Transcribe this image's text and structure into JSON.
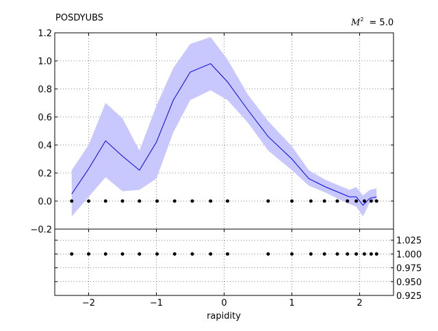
{
  "chart_data": {
    "type": "line",
    "title": "POSDYUBS",
    "annotation": {
      "symbol": "M",
      "superscript": "2",
      "text": "= 5.0"
    },
    "xlabel": "rapidity",
    "xlim": [
      -2.5,
      2.5
    ],
    "xticks": [
      -2,
      -1,
      0,
      1,
      2
    ],
    "xtick_labels": [
      "−2",
      "−1",
      "0",
      "1",
      "2"
    ],
    "top_panel": {
      "ylim": [
        -0.2,
        1.2
      ],
      "yticks": [
        -0.2,
        0.0,
        0.2,
        0.4,
        0.6,
        0.8,
        1.0,
        1.2
      ],
      "ytick_labels": [
        "−0.2",
        "0.0",
        "0.2",
        "0.4",
        "0.6",
        "0.8",
        "1.0",
        "1.2"
      ],
      "line_color": "#0000ff",
      "band_color": "#c8c8ff",
      "series": [
        {
          "x": [
            -2.25,
            -2.0,
            -1.75,
            -1.5,
            -1.25,
            -1.0,
            -0.75,
            -0.5,
            -0.2,
            0.05,
            0.35,
            0.65,
            1.0,
            1.25,
            1.5,
            1.75,
            1.85,
            1.95,
            2.05,
            2.15,
            2.25
          ],
          "y": [
            0.05,
            0.23,
            0.43,
            0.32,
            0.22,
            0.42,
            0.72,
            0.92,
            0.98,
            0.85,
            0.65,
            0.46,
            0.3,
            0.16,
            0.1,
            0.05,
            0.03,
            0.03,
            -0.03,
            0.02,
            0.03
          ],
          "y_low": [
            -0.11,
            0.03,
            0.17,
            0.07,
            0.08,
            0.16,
            0.49,
            0.72,
            0.79,
            0.72,
            0.56,
            0.36,
            0.22,
            0.11,
            0.06,
            0.0,
            -0.02,
            -0.04,
            -0.11,
            -0.01,
            0.0
          ],
          "y_high": [
            0.22,
            0.4,
            0.7,
            0.59,
            0.36,
            0.68,
            0.95,
            1.12,
            1.17,
            1.01,
            0.76,
            0.57,
            0.39,
            0.22,
            0.15,
            0.1,
            0.08,
            0.1,
            0.04,
            0.08,
            0.09
          ]
        }
      ],
      "points": {
        "x": [
          -2.25,
          -2.0,
          -1.75,
          -1.5,
          -1.25,
          -0.99,
          -0.73,
          -0.47,
          -0.2,
          0.05,
          0.65,
          1.0,
          1.28,
          1.48,
          1.67,
          1.82,
          1.95,
          2.07,
          2.17,
          2.25
        ],
        "y": [
          0,
          0,
          0,
          0,
          0,
          0,
          0,
          0,
          0,
          0,
          0,
          0,
          0,
          0,
          0,
          0,
          0,
          0,
          0,
          0
        ]
      }
    },
    "bottom_panel": {
      "ylim": [
        0.925,
        1.045
      ],
      "yticks": [
        0.925,
        0.95,
        0.975,
        1.0,
        1.025
      ],
      "ytick_labels": [
        "0.925",
        "0.950",
        "0.975",
        "1.000",
        "1.025"
      ],
      "points": {
        "x": [
          -2.25,
          -2.0,
          -1.75,
          -1.5,
          -1.25,
          -0.99,
          -0.73,
          -0.47,
          -0.2,
          0.05,
          0.65,
          1.0,
          1.28,
          1.48,
          1.67,
          1.82,
          1.95,
          2.07,
          2.17,
          2.25
        ],
        "y": [
          1,
          1,
          1,
          1,
          1,
          1,
          1,
          1,
          1,
          1,
          1,
          1,
          1,
          1,
          1,
          1,
          1,
          1,
          1,
          1
        ]
      }
    },
    "grid": true
  }
}
